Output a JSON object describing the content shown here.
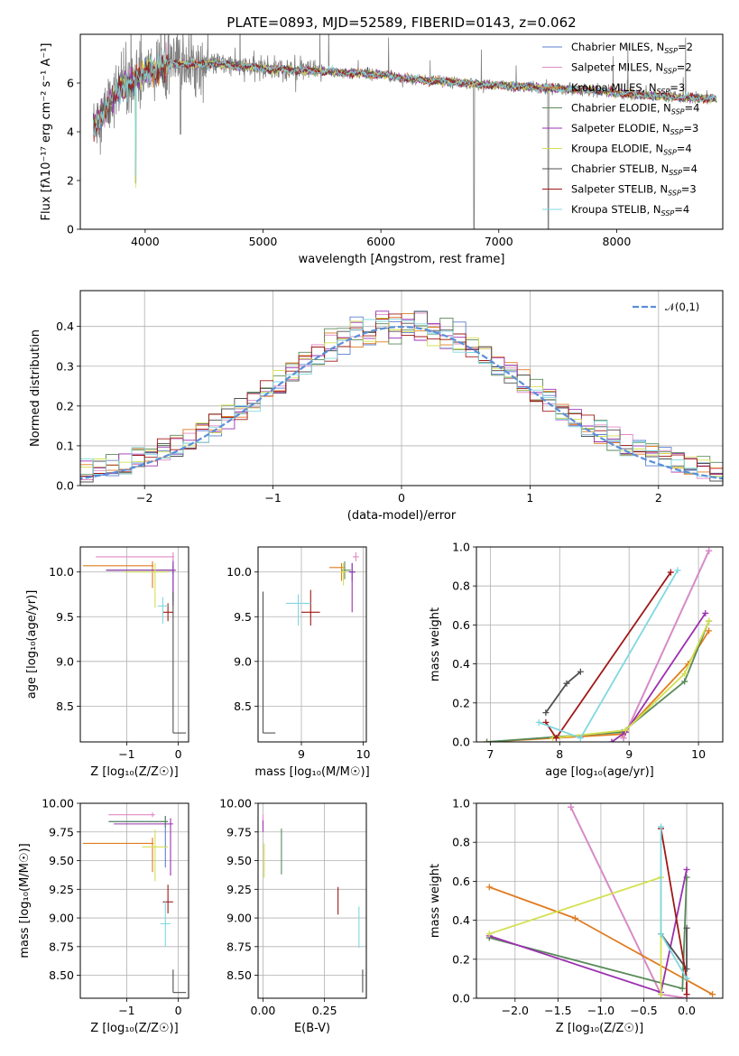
{
  "colors": {
    "Chabrier MILES": "#5b7fcf",
    "Salpeter MILES": "#e08ac4",
    "Kroupa MILES": "#e07b1f",
    "Chabrier ELODIE": "#5a8a5a",
    "Salpeter ELODIE": "#9b30b0",
    "Kroupa ELODIE": "#d4e050",
    "Chabrier STELIB": "#505050",
    "Salpeter STELIB": "#a01818",
    "Kroupa STELIB": "#80d8e0",
    "data": "#808080",
    "normal": "#5b8fd9"
  },
  "chart_data": [
    {
      "id": "spectrum",
      "type": "line",
      "title": "PLATE=0893, MJD=52589, FIBERID=0143, z=0.062",
      "xlabel": "wavelength [Angstrom, rest frame]",
      "ylabel": "Flux [fλ10⁻¹⁷ erg cm⁻² s⁻¹ A⁻¹]",
      "xlim": [
        3450,
        8900
      ],
      "ylim": [
        0,
        8
      ],
      "xticks": [
        4000,
        5000,
        6000,
        7000,
        8000
      ],
      "yticks": [
        0,
        2,
        4,
        6
      ],
      "grid": false,
      "legend_position": "upper right",
      "legend": [
        {
          "series": "Chabrier MILES",
          "text": "Chabrier MILES, N",
          "sub": "SSP",
          "after": "=2"
        },
        {
          "series": "Salpeter MILES",
          "text": "Salpeter MILES, N",
          "sub": "SSP",
          "after": "=2"
        },
        {
          "series": "Kroupa MILES",
          "text": "Kroupa MILES, N",
          "sub": "SSP",
          "after": "=3"
        },
        {
          "series": "Chabrier ELODIE",
          "text": "Chabrier ELODIE, N",
          "sub": "SSP",
          "after": "=4"
        },
        {
          "series": "Salpeter ELODIE",
          "text": "Salpeter ELODIE, N",
          "sub": "SSP",
          "after": "=3"
        },
        {
          "series": "Kroupa ELODIE",
          "text": "Kroupa ELODIE, N",
          "sub": "SSP",
          "after": "=4"
        },
        {
          "series": "Chabrier STELIB",
          "text": "Chabrier STELIB, N",
          "sub": "SSP",
          "after": "=4"
        },
        {
          "series": "Salpeter STELIB",
          "text": "Salpeter STELIB, N",
          "sub": "SSP",
          "after": "=3"
        },
        {
          "series": "Kroupa STELIB",
          "text": "Kroupa STELIB, N",
          "sub": "SSP",
          "after": "=4"
        }
      ],
      "continuum": {
        "x": [
          3560,
          3650,
          3750,
          3850,
          3950,
          4050,
          4150,
          4300,
          4450,
          4600,
          4800,
          5000,
          5200,
          5400,
          5600,
          5800,
          6000,
          6200,
          6400,
          6600,
          6800,
          7000,
          7200,
          7400,
          7600,
          7800,
          8000,
          8200,
          8400,
          8600,
          8800
        ],
        "y": [
          4.3,
          4.8,
          5.6,
          6.0,
          6.3,
          6.5,
          6.7,
          6.8,
          6.75,
          6.8,
          6.7,
          6.6,
          6.55,
          6.5,
          6.45,
          6.4,
          6.35,
          6.2,
          6.1,
          6.05,
          5.95,
          5.9,
          5.85,
          5.8,
          5.75,
          5.7,
          5.6,
          5.5,
          5.45,
          5.4,
          5.35
        ]
      },
      "data_extent": [
        3560,
        8850
      ],
      "notable_features": [
        {
          "x": 6790,
          "y_min": 0
        },
        {
          "x": 7420,
          "y_min": 0
        },
        {
          "x": 3920,
          "y_min": 1.9
        },
        {
          "x": 4300,
          "y_min": 3.9
        }
      ]
    },
    {
      "id": "residual-histogram",
      "type": "histogram",
      "xlabel": "(data-model)/error",
      "ylabel": "Normed distribution",
      "xlim": [
        -2.5,
        2.5
      ],
      "ylim": [
        0,
        0.49
      ],
      "xticks": [
        -2,
        -1,
        0,
        1,
        2
      ],
      "yticks": [
        0.0,
        0.1,
        0.2,
        0.3,
        0.4
      ],
      "grid": true,
      "legend_position": "upper right",
      "reference_curve": {
        "label": "𝒩(0,1)",
        "mean": 0,
        "sigma": 1
      },
      "bin_width": 0.1
    },
    {
      "id": "age-vs-Z",
      "type": "errorbar",
      "xlabel": "Z [log₁₀(Z/Z☉)]",
      "ylabel": "age  [log₁₀(age/yr)]",
      "xlim": [
        -1.9,
        0.2
      ],
      "ylim": [
        8.1,
        10.28
      ],
      "xticks": [
        -1,
        0
      ],
      "yticks": [
        8.5,
        9.0,
        9.5,
        10.0
      ],
      "grid": true,
      "points": [
        {
          "series": "Chabrier MILES",
          "x": -0.1,
          "y": 10.02,
          "xerr": [
            1.3,
            0.02
          ],
          "yerr": [
            0.35,
            0.12
          ]
        },
        {
          "series": "Salpeter MILES",
          "x": -0.1,
          "y": 10.17,
          "xerr": [
            1.5,
            0.02
          ],
          "yerr": [
            0.05,
            0.05
          ]
        },
        {
          "series": "Kroupa MILES",
          "x": -0.5,
          "y": 10.07,
          "xerr": [
            1.35,
            0.02
          ],
          "yerr": [
            0.25,
            0.05
          ]
        },
        {
          "series": "Chabrier ELODIE",
          "x": -0.1,
          "y": 10.02,
          "xerr": [
            1.3,
            0.05
          ],
          "yerr": [
            0.05,
            0.05
          ]
        },
        {
          "series": "Salpeter ELODIE",
          "x": -0.1,
          "y": 10.02,
          "xerr": [
            1.3,
            0.05
          ],
          "yerr": [
            0.4,
            0.1
          ]
        },
        {
          "series": "Kroupa ELODIE",
          "x": -0.45,
          "y": 10.0,
          "xerr": [
            0.6,
            0.25
          ],
          "yerr": [
            0.4,
            0.1
          ]
        },
        {
          "series": "Chabrier STELIB",
          "x": -0.1,
          "y": 8.2,
          "xerr": [
            0.0,
            0.25
          ],
          "yerr": [
            0.0,
            1.58
          ]
        },
        {
          "series": "Salpeter STELIB",
          "x": -0.2,
          "y": 9.55,
          "xerr": [
            0.1,
            0.1
          ],
          "yerr": [
            0.1,
            0.1
          ]
        },
        {
          "series": "Kroupa STELIB",
          "x": -0.3,
          "y": 9.62,
          "xerr": [
            0.1,
            0.1
          ],
          "yerr": [
            0.2,
            0.1
          ]
        }
      ]
    },
    {
      "id": "age-vs-mass",
      "type": "errorbar",
      "xlabel": "mass [log₁₀(M/M☉)]",
      "ylabel": "",
      "xlim": [
        8.3,
        10.05
      ],
      "ylim": [
        8.1,
        10.28
      ],
      "xticks": [
        9,
        10
      ],
      "yticks": [
        8.5,
        9.0,
        9.5,
        10.0
      ],
      "grid": true,
      "points": [
        {
          "series": "Chabrier MILES",
          "x": 9.82,
          "y": 10.0,
          "xerr": [
            0.05,
            0.05
          ],
          "yerr": [
            0.1,
            0.1
          ]
        },
        {
          "series": "Salpeter MILES",
          "x": 9.88,
          "y": 10.17,
          "xerr": [
            0.05,
            0.05
          ],
          "yerr": [
            0.05,
            0.05
          ]
        },
        {
          "series": "Kroupa MILES",
          "x": 9.65,
          "y": 10.05,
          "xerr": [
            0.2,
            0.05
          ],
          "yerr": [
            0.15,
            0.05
          ]
        },
        {
          "series": "Chabrier ELODIE",
          "x": 9.7,
          "y": 10.02,
          "xerr": [
            0.05,
            0.1
          ],
          "yerr": [
            0.1,
            0.1
          ]
        },
        {
          "series": "Salpeter ELODIE",
          "x": 9.82,
          "y": 10.0,
          "xerr": [
            0.05,
            0.05
          ],
          "yerr": [
            0.45,
            0.1
          ]
        },
        {
          "series": "Kroupa ELODIE",
          "x": 9.68,
          "y": 10.0,
          "xerr": [
            0.05,
            0.05
          ],
          "yerr": [
            0.15,
            0.1
          ]
        },
        {
          "series": "Chabrier STELIB",
          "x": 8.38,
          "y": 8.2,
          "xerr": [
            0.0,
            0.2
          ],
          "yerr": [
            0.0,
            1.58
          ]
        },
        {
          "series": "Salpeter STELIB",
          "x": 9.15,
          "y": 9.55,
          "xerr": [
            0.15,
            0.15
          ],
          "yerr": [
            0.15,
            0.25
          ]
        },
        {
          "series": "Kroupa STELIB",
          "x": 8.95,
          "y": 9.65,
          "xerr": [
            0.2,
            0.2
          ],
          "yerr": [
            0.25,
            0.1
          ]
        }
      ]
    },
    {
      "id": "massweight-vs-age",
      "type": "line",
      "xlabel": "age  [log₁₀(age/yr)]",
      "ylabel": "mass weight",
      "xlim": [
        6.8,
        10.35
      ],
      "ylim": [
        0,
        1.0
      ],
      "xticks": [
        7,
        8,
        9,
        10
      ],
      "yticks": [
        0.0,
        0.2,
        0.4,
        0.6,
        0.8,
        1.0
      ],
      "grid": true,
      "series": [
        {
          "name": "Chabrier MILES",
          "x": [
            8.92,
            10.15
          ],
          "y": [
            0.02,
            0.98
          ]
        },
        {
          "name": "Salpeter MILES",
          "x": [
            8.92,
            10.15
          ],
          "y": [
            0.02,
            0.98
          ]
        },
        {
          "name": "Kroupa MILES",
          "x": [
            6.95,
            8.9,
            9.85,
            10.15
          ],
          "y": [
            0.0,
            0.04,
            0.4,
            0.57
          ]
        },
        {
          "name": "Chabrier ELODIE",
          "x": [
            6.95,
            8.9,
            9.8,
            10.15
          ],
          "y": [
            0.0,
            0.05,
            0.31,
            0.62
          ]
        },
        {
          "name": "Salpeter ELODIE",
          "x": [
            8.75,
            8.95,
            10.1
          ],
          "y": [
            0.0,
            0.05,
            0.66
          ]
        },
        {
          "name": "Kroupa ELODIE",
          "x": [
            7.9,
            8.95,
            9.8,
            10.15
          ],
          "y": [
            0.02,
            0.06,
            0.35,
            0.62
          ]
        },
        {
          "name": "Chabrier STELIB",
          "x": [
            7.8,
            8.1,
            8.3
          ],
          "y": [
            0.15,
            0.3,
            0.36
          ]
        },
        {
          "name": "Salpeter STELIB",
          "x": [
            7.8,
            7.95,
            9.6
          ],
          "y": [
            0.1,
            0.02,
            0.87
          ]
        },
        {
          "name": "Kroupa STELIB",
          "x": [
            7.7,
            8.3,
            9.7
          ],
          "y": [
            0.1,
            0.02,
            0.88
          ]
        }
      ]
    },
    {
      "id": "mass-vs-Z",
      "type": "errorbar",
      "xlabel": "Z [log₁₀(Z/Z☉)]",
      "ylabel": "mass [log₁₀(M/M☉)]",
      "xlim": [
        -1.9,
        0.2
      ],
      "ylim": [
        8.3,
        10.0
      ],
      "xticks": [
        -1,
        0
      ],
      "yticks": [
        8.5,
        8.75,
        9.0,
        9.25,
        9.5,
        9.75,
        10.0
      ],
      "grid": true,
      "points": [
        {
          "series": "Chabrier MILES",
          "x": -0.25,
          "y": 9.84,
          "xerr": [
            1.1,
            0.05
          ],
          "yerr": [
            0.4,
            0.05
          ]
        },
        {
          "series": "Salpeter MILES",
          "x": -0.5,
          "y": 9.9,
          "xerr": [
            0.85,
            0.05
          ],
          "yerr": [
            0.02,
            0.02
          ]
        },
        {
          "series": "Kroupa MILES",
          "x": -0.5,
          "y": 9.65,
          "xerr": [
            1.35,
            0.02
          ],
          "yerr": [
            0.25,
            0.05
          ]
        },
        {
          "series": "Chabrier ELODIE",
          "x": -0.25,
          "y": 9.84,
          "xerr": [
            1.1,
            0.05
          ],
          "yerr": [
            0.05,
            0.05
          ]
        },
        {
          "series": "Salpeter ELODIE",
          "x": -0.15,
          "y": 9.82,
          "xerr": [
            1.1,
            0.05
          ],
          "yerr": [
            0.45,
            0.05
          ]
        },
        {
          "series": "Kroupa ELODIE",
          "x": -0.45,
          "y": 9.62,
          "xerr": [
            0.25,
            0.25
          ],
          "yerr": [
            0.3,
            0.15
          ]
        },
        {
          "series": "Chabrier STELIB",
          "x": -0.1,
          "y": 8.35,
          "xerr": [
            0.0,
            0.25
          ],
          "yerr": [
            0.0,
            0.2
          ]
        },
        {
          "series": "Salpeter STELIB",
          "x": -0.2,
          "y": 9.14,
          "xerr": [
            0.1,
            0.1
          ],
          "yerr": [
            0.1,
            0.15
          ]
        },
        {
          "series": "Kroupa STELIB",
          "x": -0.25,
          "y": 8.95,
          "xerr": [
            0.1,
            0.1
          ],
          "yerr": [
            0.2,
            0.2
          ]
        }
      ]
    },
    {
      "id": "mass-vs-EBV",
      "type": "errorbar",
      "xlabel": "E(B-V)",
      "ylabel": "",
      "xlim": [
        -0.02,
        0.42
      ],
      "ylim": [
        8.3,
        10.0
      ],
      "xticks": [
        0.0,
        0.25
      ],
      "yticks": [
        8.5,
        8.75,
        9.0,
        9.25,
        9.5,
        9.75,
        10.0
      ],
      "grid": true,
      "points": [
        {
          "series": "Salpeter MILES",
          "x": 0.0,
          "y": 9.85,
          "xerr": [
            0.0,
            0.0
          ],
          "yerr": [
            0.05,
            0.05
          ]
        },
        {
          "series": "Salpeter ELODIE",
          "x": 0.0,
          "y": 9.8,
          "xerr": [
            0.0,
            0.0
          ],
          "yerr": [
            0.05,
            0.05
          ]
        },
        {
          "series": "Kroupa ELODIE",
          "x": 0.005,
          "y": 9.5,
          "xerr": [
            0.0,
            0.0
          ],
          "yerr": [
            0.15,
            0.15
          ]
        },
        {
          "series": "Chabrier ELODIE",
          "x": 0.075,
          "y": 9.58,
          "xerr": [
            0.0,
            0.0
          ],
          "yerr": [
            0.2,
            0.2
          ]
        },
        {
          "series": "Salpeter STELIB",
          "x": 0.305,
          "y": 9.15,
          "xerr": [
            0.0,
            0.0
          ],
          "yerr": [
            0.12,
            0.12
          ]
        },
        {
          "series": "Kroupa STELIB",
          "x": 0.39,
          "y": 8.92,
          "xerr": [
            0.0,
            0.0
          ],
          "yerr": [
            0.18,
            0.18
          ]
        },
        {
          "series": "Chabrier STELIB",
          "x": 0.405,
          "y": 8.45,
          "xerr": [
            0.0,
            0.0
          ],
          "yerr": [
            0.1,
            0.1
          ]
        }
      ]
    },
    {
      "id": "massweight-vs-Z",
      "type": "line",
      "xlabel": "Z [log₁₀(Z/Z☉)]",
      "ylabel": "mass weight",
      "xlim": [
        -2.45,
        0.42
      ],
      "ylim": [
        0,
        1.0
      ],
      "xticks": [
        -2.0,
        -1.5,
        -1.0,
        -0.5,
        0.0
      ],
      "yticks": [
        0.0,
        0.2,
        0.4,
        0.6,
        0.8,
        1.0
      ],
      "grid": true,
      "series": [
        {
          "name": "Chabrier MILES",
          "x": [
            -1.35,
            -0.3,
            0.0
          ],
          "y": [
            0.98,
            0.02,
            0.0
          ]
        },
        {
          "name": "Salpeter MILES",
          "x": [
            -1.35,
            -0.3,
            0.0
          ],
          "y": [
            0.98,
            0.02,
            0.0
          ]
        },
        {
          "name": "Kroupa MILES",
          "x": [
            -2.3,
            -1.3,
            0.3
          ],
          "y": [
            0.57,
            0.41,
            0.02
          ]
        },
        {
          "name": "Chabrier ELODIE",
          "x": [
            -2.3,
            -0.05,
            0.0
          ],
          "y": [
            0.31,
            0.05,
            0.62
          ]
        },
        {
          "name": "Salpeter ELODIE",
          "x": [
            -2.3,
            -0.3,
            0.0
          ],
          "y": [
            0.32,
            0.03,
            0.66
          ]
        },
        {
          "name": "Kroupa ELODIE",
          "x": [
            -2.3,
            -0.3,
            -0.3
          ],
          "y": [
            0.33,
            0.62,
            0.02
          ]
        },
        {
          "name": "Chabrier STELIB",
          "x": [
            -0.3,
            0.0,
            0.0
          ],
          "y": [
            0.33,
            0.15,
            0.36
          ]
        },
        {
          "name": "Salpeter STELIB",
          "x": [
            -0.3,
            0.0,
            0.0
          ],
          "y": [
            0.87,
            0.1,
            0.02
          ]
        },
        {
          "name": "Kroupa STELIB",
          "x": [
            -0.3,
            -0.3,
            0.0
          ],
          "y": [
            0.88,
            0.33,
            0.1
          ]
        }
      ]
    }
  ]
}
